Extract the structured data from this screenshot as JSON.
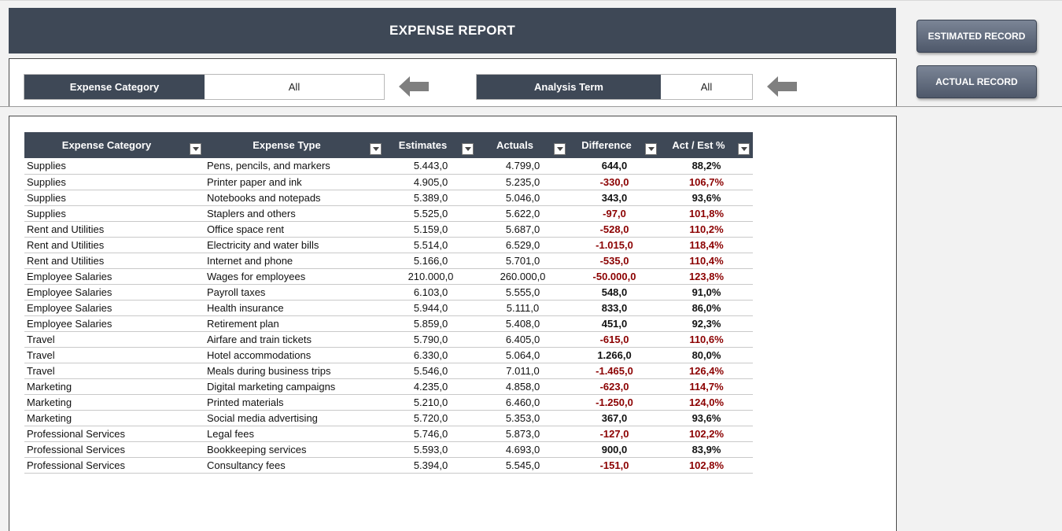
{
  "title": "EXPENSE REPORT",
  "filters": {
    "category_label": "Expense Category",
    "category_value": "All",
    "term_label": "Analysis Term",
    "term_value": "All"
  },
  "buttons": {
    "estimated": "ESTIMATED RECORD",
    "actual": "ACTUAL RECORD"
  },
  "colors": {
    "header": "#3e4856",
    "negative": "#8b0000"
  },
  "table": {
    "columns": [
      "Expense Category",
      "Expense Type",
      "Estimates",
      "Actuals",
      "Difference",
      "Act / Est %"
    ],
    "rows": [
      {
        "category": "Supplies",
        "type": "Pens, pencils, and markers",
        "est": "5.443,0",
        "act": "4.799,0",
        "diff": "644,0",
        "pct": "88,2%",
        "neg": false
      },
      {
        "category": "Supplies",
        "type": "Printer paper and ink",
        "est": "4.905,0",
        "act": "5.235,0",
        "diff": "-330,0",
        "pct": "106,7%",
        "neg": true
      },
      {
        "category": "Supplies",
        "type": "Notebooks and notepads",
        "est": "5.389,0",
        "act": "5.046,0",
        "diff": "343,0",
        "pct": "93,6%",
        "neg": false
      },
      {
        "category": "Supplies",
        "type": "Staplers and others",
        "est": "5.525,0",
        "act": "5.622,0",
        "diff": "-97,0",
        "pct": "101,8%",
        "neg": true
      },
      {
        "category": "Rent and Utilities",
        "type": "Office space rent",
        "est": "5.159,0",
        "act": "5.687,0",
        "diff": "-528,0",
        "pct": "110,2%",
        "neg": true
      },
      {
        "category": "Rent and Utilities",
        "type": "Electricity and water bills",
        "est": "5.514,0",
        "act": "6.529,0",
        "diff": "-1.015,0",
        "pct": "118,4%",
        "neg": true
      },
      {
        "category": "Rent and Utilities",
        "type": "Internet and phone",
        "est": "5.166,0",
        "act": "5.701,0",
        "diff": "-535,0",
        "pct": "110,4%",
        "neg": true
      },
      {
        "category": "Employee Salaries",
        "type": "Wages for employees",
        "est": "210.000,0",
        "act": "260.000,0",
        "diff": "-50.000,0",
        "pct": "123,8%",
        "neg": true
      },
      {
        "category": "Employee Salaries",
        "type": "Payroll taxes",
        "est": "6.103,0",
        "act": "5.555,0",
        "diff": "548,0",
        "pct": "91,0%",
        "neg": false
      },
      {
        "category": "Employee Salaries",
        "type": "Health insurance",
        "est": "5.944,0",
        "act": "5.111,0",
        "diff": "833,0",
        "pct": "86,0%",
        "neg": false
      },
      {
        "category": "Employee Salaries",
        "type": "Retirement plan",
        "est": "5.859,0",
        "act": "5.408,0",
        "diff": "451,0",
        "pct": "92,3%",
        "neg": false
      },
      {
        "category": "Travel",
        "type": "Airfare and train tickets",
        "est": "5.790,0",
        "act": "6.405,0",
        "diff": "-615,0",
        "pct": "110,6%",
        "neg": true
      },
      {
        "category": "Travel",
        "type": "Hotel accommodations",
        "est": "6.330,0",
        "act": "5.064,0",
        "diff": "1.266,0",
        "pct": "80,0%",
        "neg": false
      },
      {
        "category": "Travel",
        "type": "Meals during business trips",
        "est": "5.546,0",
        "act": "7.011,0",
        "diff": "-1.465,0",
        "pct": "126,4%",
        "neg": true
      },
      {
        "category": "Marketing",
        "type": "Digital marketing campaigns",
        "est": "4.235,0",
        "act": "4.858,0",
        "diff": "-623,0",
        "pct": "114,7%",
        "neg": true
      },
      {
        "category": "Marketing",
        "type": "Printed materials",
        "est": "5.210,0",
        "act": "6.460,0",
        "diff": "-1.250,0",
        "pct": "124,0%",
        "neg": true
      },
      {
        "category": "Marketing",
        "type": "Social media advertising",
        "est": "5.720,0",
        "act": "5.353,0",
        "diff": "367,0",
        "pct": "93,6%",
        "neg": false
      },
      {
        "category": "Professional Services",
        "type": "Legal fees",
        "est": "5.746,0",
        "act": "5.873,0",
        "diff": "-127,0",
        "pct": "102,2%",
        "neg": true
      },
      {
        "category": "Professional Services",
        "type": "Bookkeeping services",
        "est": "5.593,0",
        "act": "4.693,0",
        "diff": "900,0",
        "pct": "83,9%",
        "neg": false
      },
      {
        "category": "Professional Services",
        "type": "Consultancy fees",
        "est": "5.394,0",
        "act": "5.545,0",
        "diff": "-151,0",
        "pct": "102,8%",
        "neg": true
      }
    ]
  }
}
